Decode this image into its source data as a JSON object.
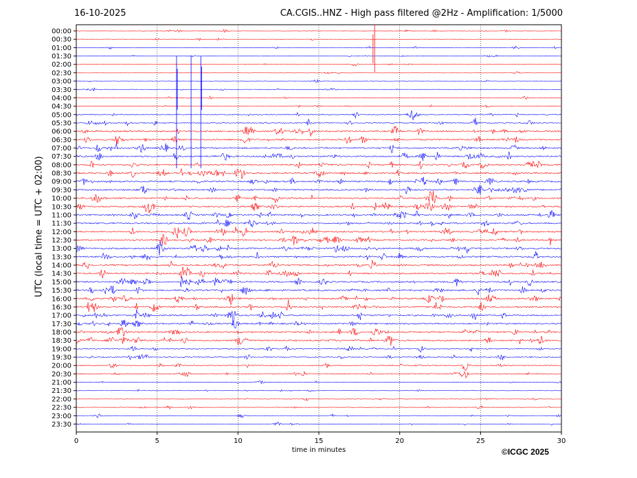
{
  "header": {
    "date": "16-10-2025",
    "title": "CA.CGIS..HNZ - High pass filtered @2Hz - Amplification: 1/5000"
  },
  "footer": {
    "copyright": "©ICGC 2025"
  },
  "chart_data": {
    "type": "line",
    "title": "CA.CGIS..HNZ - High pass filtered @2Hz - Amplification: 1/5000",
    "subtitle": "16-10-2025",
    "xlabel": "time in minutes",
    "ylabel": "UTC (local time = UTC + 02:00)",
    "xlim": [
      0,
      30
    ],
    "x_ticks": [
      0,
      5,
      10,
      15,
      20,
      25,
      30
    ],
    "y_ticks": [
      "00:00",
      "00:30",
      "01:00",
      "01:30",
      "02:00",
      "02:30",
      "03:00",
      "03:30",
      "04:00",
      "04:30",
      "05:00",
      "05:30",
      "06:00",
      "06:30",
      "07:00",
      "07:30",
      "08:00",
      "08:30",
      "09:00",
      "09:30",
      "10:00",
      "10:30",
      "11:00",
      "11:30",
      "12:00",
      "12:30",
      "13:00",
      "13:30",
      "14:00",
      "14:30",
      "15:00",
      "15:30",
      "16:00",
      "16:30",
      "17:00",
      "17:30",
      "18:00",
      "18:30",
      "19:00",
      "19:30",
      "20:00",
      "20:30",
      "21:00",
      "21:30",
      "22:00",
      "22:30",
      "23:00",
      "23:30"
    ],
    "grid": "vertical dotted lines at 5-minute intervals",
    "trace_colors": [
      "#ff0000",
      "#0000ff"
    ],
    "color_pattern": "alternating by trace row: red, red, blue, blue",
    "trace_count": 48
  }
}
